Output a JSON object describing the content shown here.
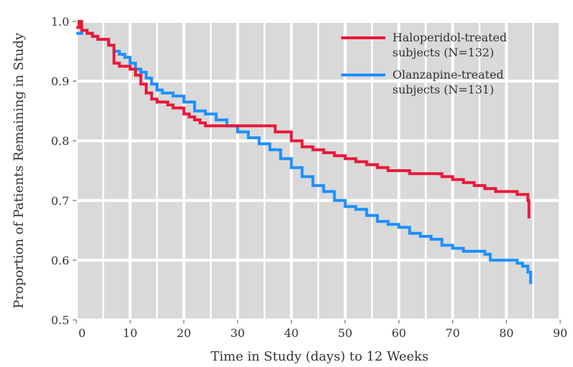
{
  "chart_data": {
    "type": "line",
    "title": "",
    "xlabel": "Time in Study (days) to 12 Weeks",
    "ylabel": "Proportion of Patients Remaining in Study",
    "xlim": [
      0,
      90
    ],
    "ylim": [
      0.5,
      1.0
    ],
    "x_ticks": [
      "0",
      "10",
      "20",
      "30",
      "40",
      "50",
      "60",
      "70",
      "80",
      "90"
    ],
    "y_ticks": [
      "0.5",
      "0.6",
      "0.7",
      "0.8",
      "0.9",
      "1.0"
    ],
    "grid": true,
    "legend_position": "top-right",
    "colors": {
      "haloperidol": "#e8193a",
      "olanzapine": "#1e90ff",
      "grid_cell": "#d9d9d9",
      "grid_line": "#ffffff"
    },
    "series": [
      {
        "name": "Haloperidol-treated subjects (N=132)",
        "legend_lines": [
          "Haloperidol-treated",
          "subjects (N=132)"
        ],
        "x": [
          0,
          0.5,
          1,
          2,
          3,
          4,
          6,
          7,
          8,
          10,
          11,
          12,
          13,
          14,
          15,
          17,
          18,
          20,
          21,
          22,
          23,
          24,
          28,
          30,
          35,
          37,
          40,
          42,
          44,
          46,
          48,
          50,
          52,
          54,
          56,
          58,
          60,
          62,
          64,
          66,
          68,
          70,
          72,
          74,
          76,
          78,
          80,
          82,
          83,
          84,
          84.2
        ],
        "y": [
          0.99,
          1.0,
          0.985,
          0.98,
          0.975,
          0.97,
          0.96,
          0.93,
          0.925,
          0.92,
          0.91,
          0.895,
          0.88,
          0.87,
          0.865,
          0.86,
          0.855,
          0.845,
          0.84,
          0.835,
          0.83,
          0.825,
          0.825,
          0.825,
          0.825,
          0.815,
          0.8,
          0.79,
          0.785,
          0.78,
          0.775,
          0.77,
          0.765,
          0.76,
          0.755,
          0.75,
          0.75,
          0.745,
          0.745,
          0.745,
          0.74,
          0.735,
          0.73,
          0.725,
          0.72,
          0.715,
          0.715,
          0.71,
          0.71,
          0.7,
          0.67
        ]
      },
      {
        "name": "Olanzapine-treated subjects (N=131)",
        "legend_lines": [
          "Olanzapine-treated",
          "subjects (N=131)"
        ],
        "x": [
          0,
          1,
          2,
          3,
          4,
          6,
          7,
          8,
          9,
          10,
          11,
          12,
          13,
          14,
          15,
          16,
          18,
          20,
          22,
          24,
          26,
          28,
          30,
          32,
          34,
          36,
          38,
          40,
          42,
          44,
          46,
          48,
          50,
          52,
          54,
          56,
          58,
          60,
          62,
          64,
          66,
          68,
          70,
          72,
          74,
          76,
          77,
          80,
          82,
          83,
          84,
          84.5
        ],
        "y": [
          0.98,
          0.985,
          0.98,
          0.975,
          0.97,
          0.96,
          0.95,
          0.945,
          0.94,
          0.93,
          0.92,
          0.915,
          0.905,
          0.895,
          0.885,
          0.88,
          0.875,
          0.865,
          0.85,
          0.845,
          0.835,
          0.825,
          0.815,
          0.805,
          0.795,
          0.785,
          0.77,
          0.755,
          0.74,
          0.725,
          0.715,
          0.7,
          0.69,
          0.685,
          0.675,
          0.665,
          0.66,
          0.655,
          0.645,
          0.64,
          0.635,
          0.625,
          0.62,
          0.615,
          0.615,
          0.61,
          0.6,
          0.6,
          0.595,
          0.59,
          0.58,
          0.56
        ]
      }
    ]
  }
}
